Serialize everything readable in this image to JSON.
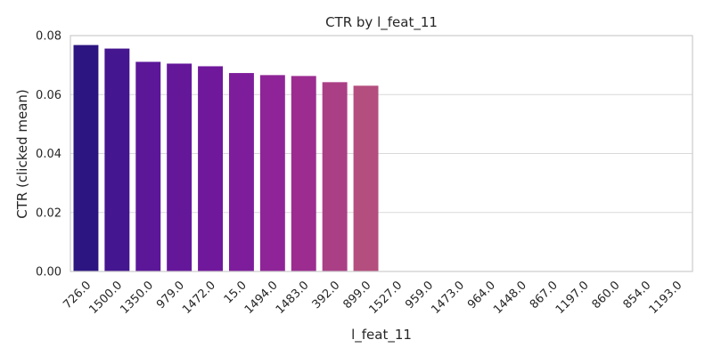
{
  "chart_data": {
    "type": "bar",
    "title": "CTR by l_feat_11",
    "xlabel": "l_feat_11",
    "ylabel": "CTR (clicked mean)",
    "categories": [
      "726.0",
      "1500.0",
      "1350.0",
      "979.0",
      "1472.0",
      "15.0",
      "1494.0",
      "1483.0",
      "392.0",
      "899.0",
      "1527.0",
      "959.0",
      "1473.0",
      "964.0",
      "1448.0",
      "867.0",
      "1197.0",
      "860.0",
      "854.0",
      "1193.0"
    ],
    "values": [
      0.0768,
      0.0756,
      0.0711,
      0.0705,
      0.0696,
      0.0673,
      0.0666,
      0.0663,
      0.0642,
      0.063,
      0,
      0,
      0,
      0,
      0,
      0,
      0,
      0,
      0,
      0
    ],
    "ylim": [
      0,
      0.08
    ],
    "yticks": [
      "0.00",
      "0.02",
      "0.04",
      "0.06",
      "0.08"
    ],
    "ytick_values": [
      0,
      0.02,
      0.04,
      0.06,
      0.08
    ],
    "grid": true,
    "colors": [
      "#2d1581",
      "#44168f",
      "#5b1798",
      "#65179a",
      "#70189b",
      "#7e1d9c",
      "#8e2497",
      "#9c2c90",
      "#aa3f85",
      "#b44e7e",
      "#bd5a78",
      "#c46473",
      "#cb6e6e",
      "#d2786a",
      "#d98366",
      "#e08e61",
      "#e69a5c",
      "#eba658",
      "#f0b354",
      "#f5c050"
    ]
  }
}
